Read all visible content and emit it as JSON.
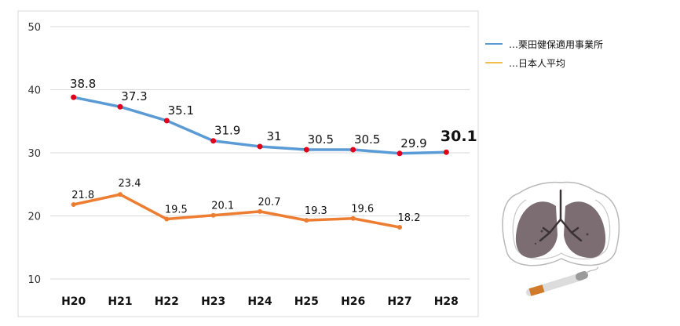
{
  "chart_data": {
    "type": "line",
    "categories": [
      "H20",
      "H21",
      "H22",
      "H23",
      "H24",
      "H25",
      "H26",
      "H27",
      "H28"
    ],
    "series": [
      {
        "name": "…栗田健保適用事業所",
        "color": "#5b9bd5",
        "values": [
          38.8,
          37.3,
          35.1,
          31.9,
          31,
          30.5,
          30.5,
          29.9,
          30.1
        ],
        "labels": [
          "38.8",
          "37.3",
          "35.1",
          "31.9",
          "31",
          "30.5",
          "30.5",
          "29.9",
          "30.1"
        ]
      },
      {
        "name": "…日本人平均",
        "color": "#ed7d31",
        "values": [
          21.8,
          23.4,
          19.5,
          20.1,
          20.7,
          19.3,
          19.6,
          18.2,
          null
        ],
        "labels": [
          "21.8",
          "23.4",
          "19.5",
          "20.1",
          "20.7",
          "19.3",
          "19.6",
          "18.2",
          ""
        ]
      }
    ],
    "ylim": [
      10,
      50
    ],
    "yticks": [
      "10",
      "20",
      "30",
      "40",
      "50"
    ],
    "grid": true,
    "legend": "right",
    "legend_swatch_colors": [
      "#5b9bd5",
      "#f2c14e"
    ],
    "marker_color": "#e0001a"
  },
  "illustration": {
    "lungs-icon": "lungs",
    "cigarette-icon": "cigarette"
  }
}
